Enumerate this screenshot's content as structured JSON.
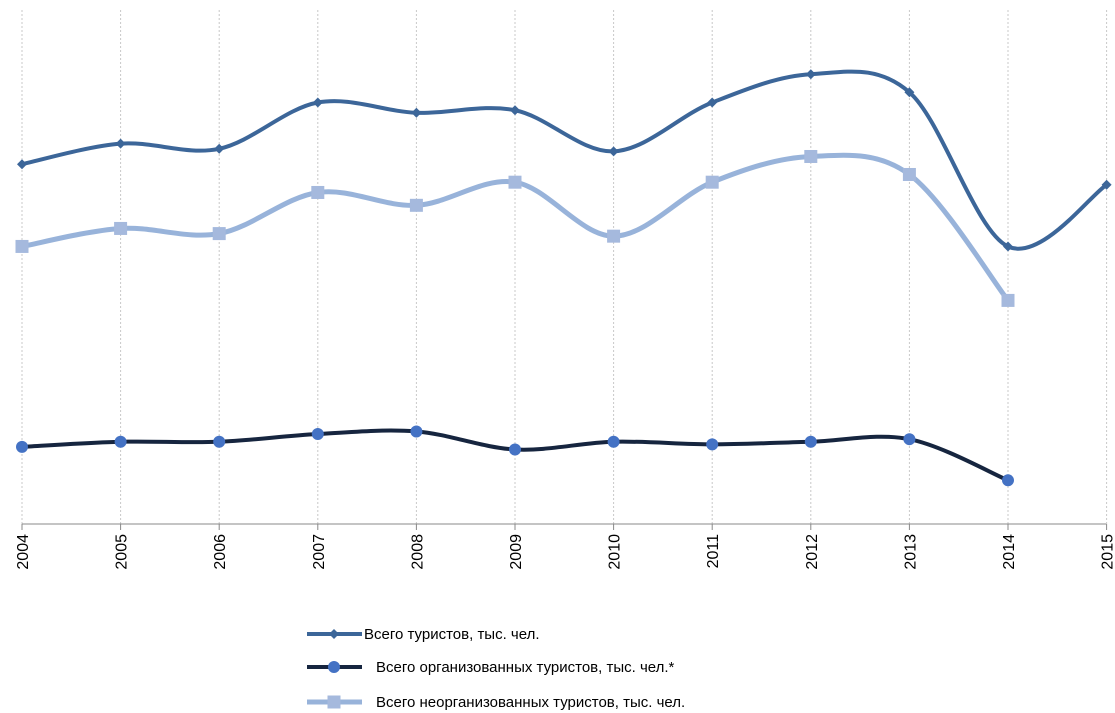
{
  "chart_data": {
    "type": "line",
    "title": "",
    "xlabel": "",
    "ylabel": "",
    "grid": true,
    "legend_position": "bottom",
    "x": [
      "2004",
      "2005",
      "2006",
      "2007",
      "2008",
      "2009",
      "2010",
      "2011",
      "2012",
      "2013",
      "2014",
      "2015"
    ],
    "ylim": [
      0,
      100
    ],
    "series": [
      {
        "name": "Всего туристов, тыс. чел.",
        "color": "#3C6699",
        "marker": "diamond",
        "values": [
          70,
          74,
          73,
          82,
          80,
          80.5,
          72.5,
          82,
          87.5,
          84,
          54,
          66
        ]
      },
      {
        "name": "Всего организованных туристов, тыс. чел.*",
        "color": "#16253F",
        "marker": "circle",
        "values": [
          15,
          16,
          16,
          17.5,
          18,
          14.5,
          16,
          15.5,
          16,
          16.5,
          8.5,
          null
        ]
      },
      {
        "name": "Всего неорганизованных туристов, тыс. чел.",
        "color": "#98B3DA",
        "marker": "square",
        "values": [
          54,
          57.5,
          56.5,
          64.5,
          62,
          66.5,
          56,
          66.5,
          71.5,
          68,
          43.5,
          null
        ]
      }
    ]
  }
}
